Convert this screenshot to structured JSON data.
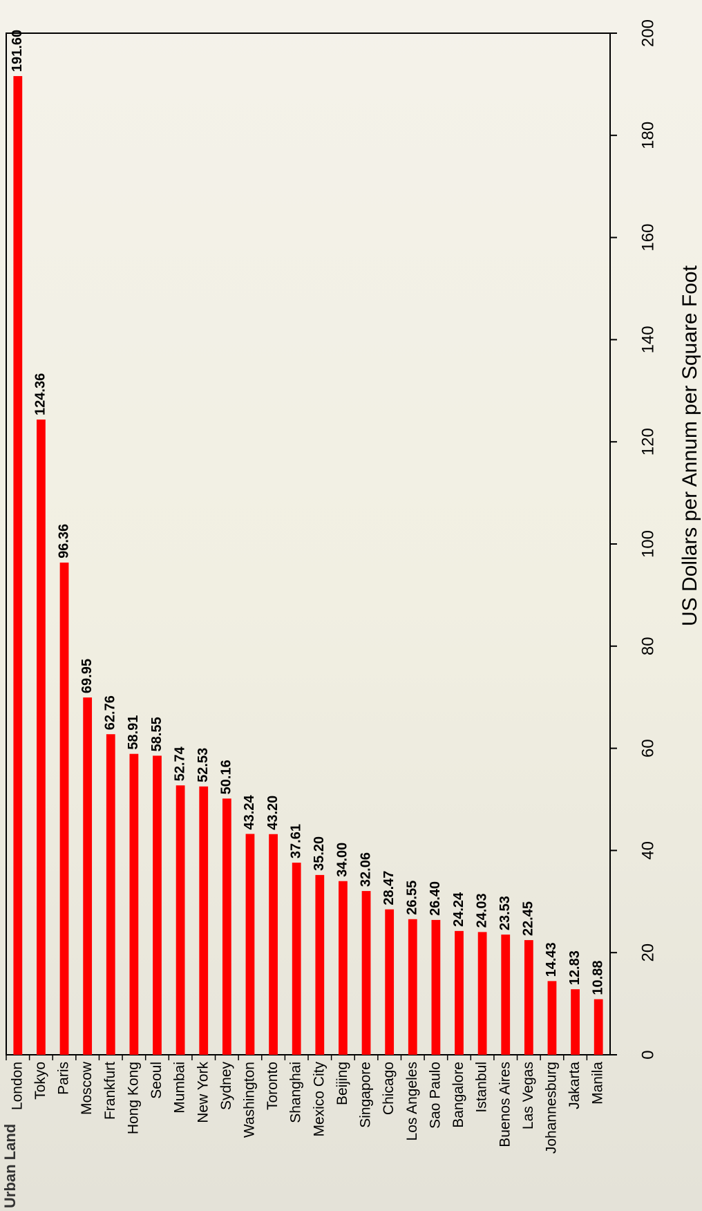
{
  "chart_data": {
    "type": "bar",
    "categories": [
      "London",
      "Tokyo",
      "Paris",
      "Moscow",
      "Frankfurt",
      "Hong Kong",
      "Seoul",
      "Mumbai",
      "New York",
      "Sydney",
      "Washington",
      "Toronto",
      "Shanghai",
      "Mexico City",
      "Beijing",
      "Singapore",
      "Chicago",
      "Los Angeles",
      "Sao Paulo",
      "Bangalore",
      "Istanbul",
      "Buenos Aires",
      "Las Vegas",
      "Johannesburg",
      "Jakarta",
      "Manila"
    ],
    "values": [
      191.6,
      124.36,
      96.36,
      69.95,
      62.76,
      58.91,
      58.55,
      52.74,
      52.53,
      50.16,
      43.24,
      43.2,
      37.61,
      35.2,
      34.0,
      32.06,
      28.47,
      26.55,
      26.4,
      24.24,
      24.03,
      23.53,
      22.45,
      14.43,
      12.83,
      10.88
    ],
    "value_labels": [
      "191.60",
      "124.36",
      "96.36",
      "69.95",
      "62.76",
      "58.91",
      "58.55",
      "52.74",
      "52.53",
      "50.16",
      "43.24",
      "43.20",
      "37.61",
      "35.20",
      "34.00",
      "32.06",
      "28.47",
      "26.55",
      "26.40",
      "24.24",
      "24.03",
      "23.53",
      "22.45",
      "14.43",
      "12.83",
      "10.88"
    ],
    "color": "#ff0000",
    "ylabel": "US Dollars per Annum per Square Foot",
    "ylim": [
      0,
      200
    ],
    "yticks": [
      0,
      20,
      40,
      60,
      80,
      100,
      120,
      140,
      160,
      180,
      200
    ],
    "logo": "Urban Land"
  }
}
